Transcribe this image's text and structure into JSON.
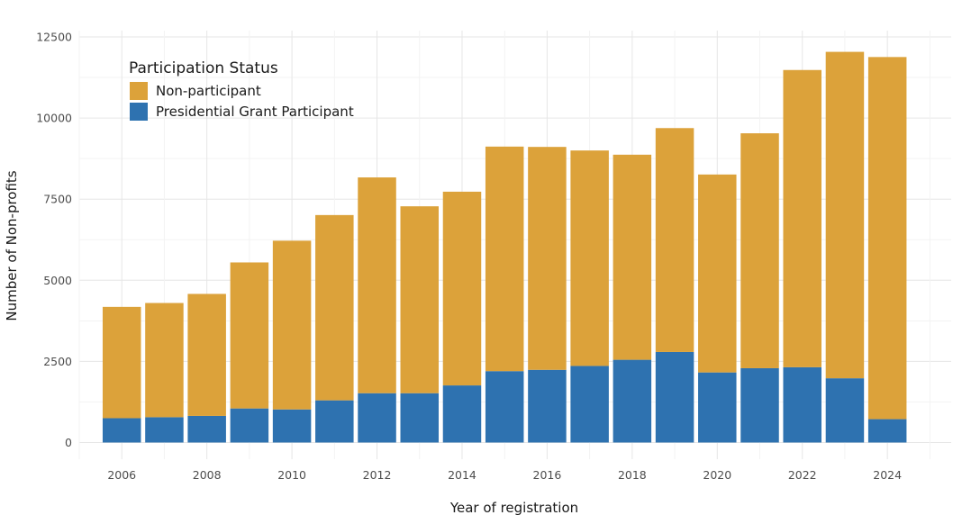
{
  "chart_data": {
    "type": "bar",
    "stacked": true,
    "title": "",
    "xlabel": "Year of registration",
    "ylabel": "Number of Non-profits",
    "ylim": [
      0,
      12500
    ],
    "yticks": [
      0,
      2500,
      5000,
      7500,
      10000,
      12500
    ],
    "xticks": [
      2006,
      2008,
      2010,
      2012,
      2014,
      2016,
      2018,
      2020,
      2022,
      2024
    ],
    "xlim": [
      2005,
      2025.5
    ],
    "grid": true,
    "legend": {
      "title": "Participation Status",
      "position": "top-left"
    },
    "categories": [
      2006,
      2007,
      2008,
      2009,
      2010,
      2011,
      2012,
      2013,
      2014,
      2015,
      2016,
      2017,
      2018,
      2019,
      2020,
      2021,
      2022,
      2023,
      2024
    ],
    "series": [
      {
        "name": "Presidential Grant Participant",
        "color": "#2e72b0",
        "values": [
          750,
          780,
          820,
          1050,
          1020,
          1300,
          1520,
          1520,
          1760,
          2200,
          2240,
          2360,
          2550,
          2790,
          2160,
          2290,
          2320,
          1980,
          720
        ]
      },
      {
        "name": "Non-participant",
        "color": "#dca23a",
        "values": [
          3430,
          3520,
          3760,
          4500,
          5200,
          5710,
          6650,
          5760,
          5970,
          6920,
          6870,
          6640,
          6320,
          6900,
          6100,
          7240,
          9160,
          10060,
          11160
        ]
      }
    ]
  }
}
